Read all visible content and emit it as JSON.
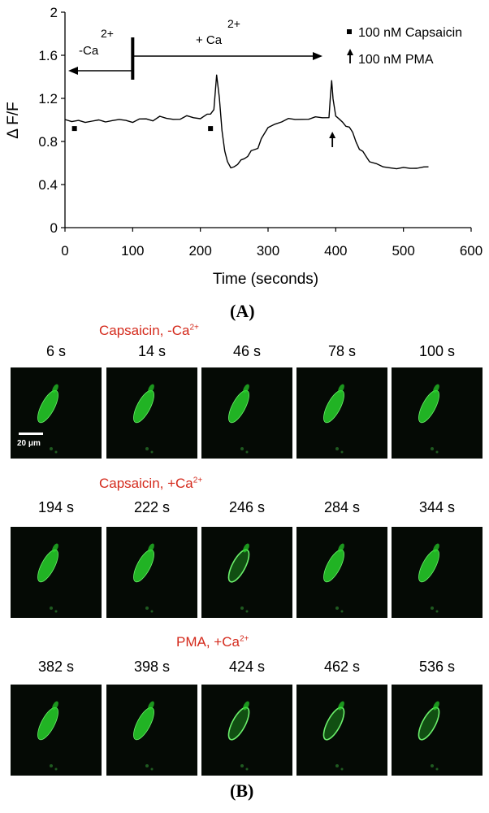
{
  "chart_data": {
    "type": "line",
    "title": "",
    "xlabel": "Time (seconds)",
    "ylabel": "Δ F/F",
    "xlim": [
      0,
      600
    ],
    "ylim": [
      0,
      2
    ],
    "x_ticks": [
      "0",
      "100",
      "200",
      "300",
      "400",
      "500",
      "600"
    ],
    "y_ticks": [
      "0",
      "0.4",
      "0.8",
      "1.2",
      "1.6",
      "2"
    ],
    "grid": false,
    "series": [
      {
        "x": [
          0,
          10,
          20,
          30,
          40,
          50,
          60,
          70,
          80,
          90,
          100,
          110,
          120,
          130,
          140,
          150,
          160,
          170,
          180,
          190,
          200,
          210,
          215,
          220,
          224,
          228,
          232,
          236,
          240,
          245,
          250,
          255,
          260,
          265,
          270,
          275,
          280,
          285,
          290,
          300,
          310,
          320,
          330,
          340,
          350,
          360,
          370,
          380,
          390,
          392,
          394,
          396,
          400,
          405,
          410,
          415,
          420,
          425,
          430,
          435,
          440,
          445,
          450,
          460,
          470,
          480,
          490,
          500,
          510,
          520,
          530,
          537
        ],
        "y": [
          0.99,
          0.98,
          1.0,
          0.99,
          0.98,
          1.0,
          0.99,
          0.98,
          1.0,
          1.0,
          0.99,
          1.0,
          1.01,
          1.0,
          1.02,
          1.01,
          1.01,
          1.02,
          1.03,
          1.02,
          1.02,
          1.04,
          1.05,
          1.1,
          1.43,
          1.2,
          0.9,
          0.72,
          0.6,
          0.55,
          0.57,
          0.6,
          0.62,
          0.64,
          0.67,
          0.7,
          0.72,
          0.74,
          0.84,
          0.92,
          0.96,
          0.99,
          1.0,
          1.0,
          1.01,
          1.02,
          1.02,
          1.02,
          1.03,
          1.2,
          1.36,
          1.2,
          1.05,
          1.0,
          0.98,
          0.95,
          0.92,
          0.88,
          0.8,
          0.74,
          0.7,
          0.66,
          0.62,
          0.58,
          0.56,
          0.56,
          0.56,
          0.55,
          0.55,
          0.56,
          0.55,
          0.56
        ]
      }
    ],
    "annotations": {
      "minus_ca": {
        "text": "-Ca",
        "sup": "2+"
      },
      "plus_ca": {
        "text": "+ Ca",
        "sup": "2+"
      },
      "legend_capsaicin": "100 nM Capsaicin",
      "legend_pma": "100 nM PMA",
      "capsaicin_markers": [
        {
          "x": 14,
          "y": 0.92
        },
        {
          "x": 215,
          "y": 0.92
        }
      ],
      "pma_arrow_x": 395,
      "divider_x": 100
    }
  },
  "panel_a_label": "(A)",
  "panel_b_label": "(B)",
  "scale_bar": "20 μm",
  "rows": [
    {
      "condition": "Capsaicin, -Ca",
      "sup": "2+",
      "times": [
        "6 s",
        "14 s",
        "46 s",
        "78 s",
        "100 s"
      ]
    },
    {
      "condition": "Capsaicin, +Ca",
      "sup": "2+",
      "times": [
        "194 s",
        "222 s",
        "246 s",
        "284 s",
        "344 s"
      ]
    },
    {
      "condition": "PMA, +Ca",
      "sup": "2+",
      "times": [
        "382 s",
        "398 s",
        "424 s",
        "462 s",
        "536 s"
      ]
    }
  ],
  "colors": {
    "cell": "#27d12a",
    "cell_ring": "#6cf06c",
    "condition_text": "#d42a1c"
  }
}
